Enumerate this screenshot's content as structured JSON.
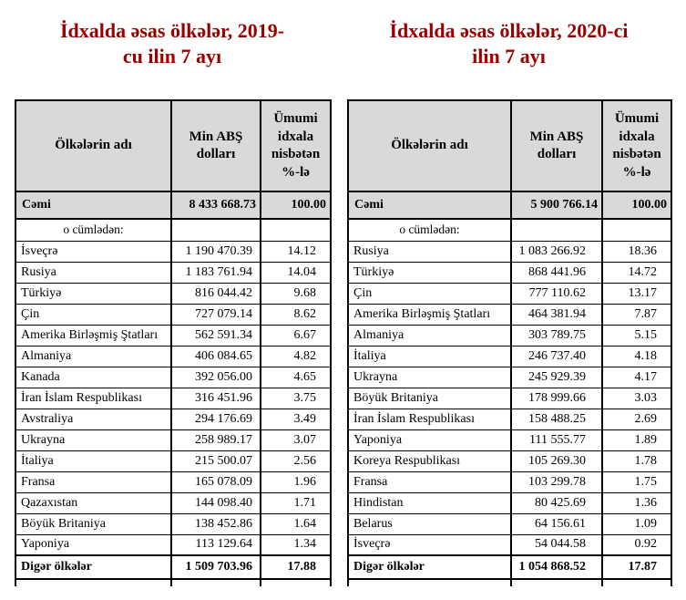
{
  "colors": {
    "title": "#990000",
    "header_bg": "#d9d9d9",
    "border": "#000000",
    "text": "#000000"
  },
  "tables": [
    {
      "title": "İdxalda əsas ölkələr, 2019-cu ilin 7 ayı",
      "title_lines": [
        "İdxalda əsas ölkələr, 2019-",
        "cu ilin 7 ayı"
      ],
      "columns": {
        "country": "Ölkələrin adı",
        "value": "Min ABŞ dolları",
        "percent": "Ümumi idxala nisbətən %-lə"
      },
      "total_row": {
        "label": "Cəmi",
        "value": "8 433 668.73",
        "percent": "100.00"
      },
      "subheading": "o cümlədən:",
      "rows": [
        {
          "country": "İsveçrə",
          "value": "1 190 470.39",
          "percent": "14.12"
        },
        {
          "country": "Rusiya",
          "value": "1 183 761.94",
          "percent": "14.04"
        },
        {
          "country": "Türkiyə",
          "value": "816 044.42",
          "percent": "9.68"
        },
        {
          "country": "Çin",
          "value": "727 079.14",
          "percent": "8.62"
        },
        {
          "country": "Amerika Birləşmiş Ştatları",
          "value": "562 591.34",
          "percent": "6.67"
        },
        {
          "country": "Almaniya",
          "value": "406 084.65",
          "percent": "4.82"
        },
        {
          "country": "Kanada",
          "value": "392 056.00",
          "percent": "4.65"
        },
        {
          "country": "İran İslam Respublikası",
          "value": "316 451.96",
          "percent": "3.75"
        },
        {
          "country": "Avstraliya",
          "value": "294 176.69",
          "percent": "3.49"
        },
        {
          "country": "Ukrayna",
          "value": "258 989.17",
          "percent": "3.07"
        },
        {
          "country": "İtaliya",
          "value": "215 500.07",
          "percent": "2.56"
        },
        {
          "country": "Fransa",
          "value": "165 078.09",
          "percent": "1.96"
        },
        {
          "country": "Qazaxıstan",
          "value": "144 098.40",
          "percent": "1.71"
        },
        {
          "country": "Böyük Britaniya",
          "value": "138 452.86",
          "percent": "1.64"
        },
        {
          "country": "Yaponiya",
          "value": "113 129.64",
          "percent": "1.34"
        }
      ],
      "footer_row": {
        "label": "Digər ölkələr",
        "value": "1 509 703.96",
        "percent": "17.88"
      }
    },
    {
      "title": "İdxalda əsas ölkələr, 2020-ci ilin 7 ayı",
      "title_lines": [
        "İdxalda əsas ölkələr, 2020-ci",
        "ilin 7 ayı"
      ],
      "columns": {
        "country": "Ölkələrin adı",
        "value": "Min ABŞ dolları",
        "percent": "Ümumi idxala nisbətən %-lə"
      },
      "total_row": {
        "label": "Cəmi",
        "value": "5 900 766.14",
        "percent": "100.00"
      },
      "subheading": "o cümlədən:",
      "rows": [
        {
          "country": "Rusiya",
          "value": "1 083 266.92",
          "percent": "18.36"
        },
        {
          "country": "Türkiyə",
          "value": "868 441.96",
          "percent": "14.72"
        },
        {
          "country": "Çin",
          "value": "777 110.62",
          "percent": "13.17"
        },
        {
          "country": "Amerika Birləşmiş Ştatları",
          "value": "464 381.94",
          "percent": "7.87"
        },
        {
          "country": "Almaniya",
          "value": "303 789.75",
          "percent": "5.15"
        },
        {
          "country": "İtaliya",
          "value": "246 737.40",
          "percent": "4.18"
        },
        {
          "country": "Ukrayna",
          "value": "245 929.39",
          "percent": "4.17"
        },
        {
          "country": "Böyük Britaniya",
          "value": "178 999.66",
          "percent": "3.03"
        },
        {
          "country": "İran İslam Respublikası",
          "value": "158 488.25",
          "percent": "2.69"
        },
        {
          "country": "Yaponiya",
          "value": "111 555.77",
          "percent": "1.89"
        },
        {
          "country": "Koreya Respublikası",
          "value": "105 269.30",
          "percent": "1.78"
        },
        {
          "country": "Fransa",
          "value": "103 299.78",
          "percent": "1.75"
        },
        {
          "country": "Hindistan",
          "value": "80 425.69",
          "percent": "1.36"
        },
        {
          "country": "Belarus",
          "value": "64 156.61",
          "percent": "1.09"
        },
        {
          "country": "İsveçrə",
          "value": "54 044.58",
          "percent": "0.92"
        }
      ],
      "footer_row": {
        "label": "Digər ölkələr",
        "value": "1 054 868.52",
        "percent": "17.87"
      }
    }
  ]
}
